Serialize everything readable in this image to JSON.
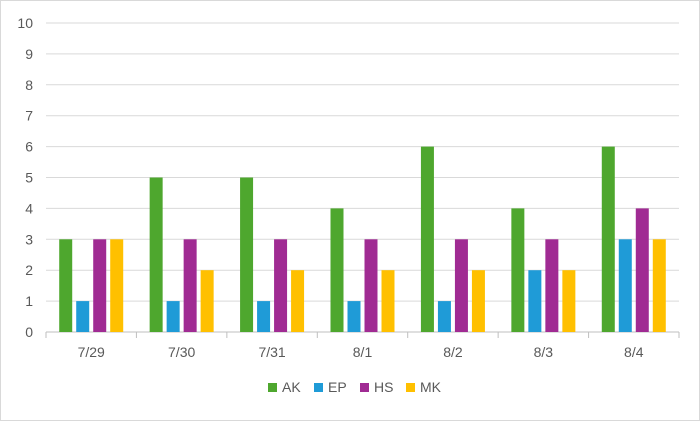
{
  "chart_data": {
    "type": "bar",
    "categories": [
      "7/29",
      "7/30",
      "7/31",
      "8/1",
      "8/2",
      "8/3",
      "8/4"
    ],
    "series": [
      {
        "name": "AK",
        "color": "#4ea72e",
        "values": [
          3,
          5,
          5,
          4,
          6,
          4,
          6
        ]
      },
      {
        "name": "EP",
        "color": "#1f9bd7",
        "values": [
          1,
          1,
          1,
          1,
          1,
          2,
          3
        ]
      },
      {
        "name": "HS",
        "color": "#a02b93",
        "values": [
          3,
          3,
          3,
          3,
          3,
          3,
          4
        ]
      },
      {
        "name": "MK",
        "color": "#ffc000",
        "values": [
          3,
          2,
          2,
          2,
          2,
          2,
          3
        ]
      }
    ],
    "ylim": [
      0,
      10
    ],
    "yticks": [
      "0",
      "1",
      "2",
      "3",
      "4",
      "5",
      "6",
      "7",
      "8",
      "9",
      "10"
    ],
    "grid": true,
    "legend_position": "bottom",
    "title": "",
    "xlabel": "",
    "ylabel": ""
  }
}
